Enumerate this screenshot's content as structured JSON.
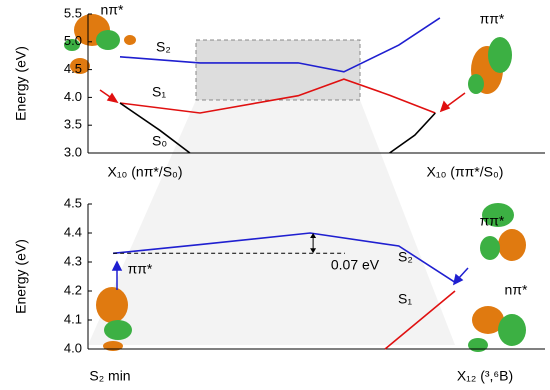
{
  "charts": [
    {
      "type": "line",
      "ylabel": "Energy (eV)",
      "xlim": [
        0,
        100
      ],
      "ylim": [
        3.0,
        5.5
      ],
      "yticks": [
        {
          "value": 3,
          "label": "3.0"
        },
        {
          "value": 3.5,
          "label": "3.5"
        },
        {
          "value": 4,
          "label": "4.0"
        },
        {
          "value": 4.5,
          "label": "4.5"
        },
        {
          "value": 5,
          "label": "5.0"
        },
        {
          "value": 5.5,
          "label": "5.5"
        }
      ],
      "x_labels": [
        "X₁₀ (nπ*/S₀)",
        "X₁₀ (ππ*/S₀)"
      ],
      "series": [
        {
          "name": "S₂",
          "color": "#1f1fd0",
          "x": [
            7,
            24.5,
            46,
            56,
            68,
            77
          ],
          "values": [
            4.73,
            4.62,
            4.62,
            4.46,
            4.94,
            5.43
          ]
        },
        {
          "name": "S₁",
          "color": "#e01010",
          "x": [
            7,
            24.5,
            46,
            56,
            66,
            76
          ],
          "values": [
            3.9,
            3.72,
            4.03,
            4.33,
            4.04,
            3.72
          ]
        },
        {
          "name": "S₀",
          "color": "#000000",
          "x": [
            7,
            15.7,
            22.3,
            40,
            66,
            71.5,
            76
          ],
          "values": [
            3.9,
            3.41,
            3.0,
            null,
            3.0,
            3.32,
            3.72
          ]
        }
      ],
      "annotations": [
        "nπ*",
        "ππ*"
      ]
    },
    {
      "type": "line",
      "ylabel": "Energy (eV)",
      "xlim": [
        0,
        100
      ],
      "ylim": [
        4.0,
        4.5
      ],
      "yticks": [
        {
          "value": 4,
          "label": "4.0"
        },
        {
          "value": 4.1,
          "label": "4.1"
        },
        {
          "value": 4.2,
          "label": "4.2"
        },
        {
          "value": 4.3,
          "label": "4.3"
        },
        {
          "value": 4.4,
          "label": "4.4"
        },
        {
          "value": 4.5,
          "label": "4.5"
        }
      ],
      "x_labels": [
        "S₂ min",
        "X₁₂ (³,⁶B)"
      ],
      "series": [
        {
          "name": "S₂",
          "color": "#1f1fd0",
          "x": [
            5.5,
            24.5,
            48.6,
            68,
            80.3
          ],
          "values": [
            4.33,
            4.36,
            4.4,
            4.355,
            4.23
          ]
        },
        {
          "name": "S₁",
          "color": "#e01010",
          "x": [
            65,
            80.3
          ],
          "values": [
            4.0,
            4.2
          ]
        }
      ],
      "annotations": [
        "0.07 eV",
        "ππ*",
        "ππ*",
        "nπ*"
      ]
    }
  ]
}
